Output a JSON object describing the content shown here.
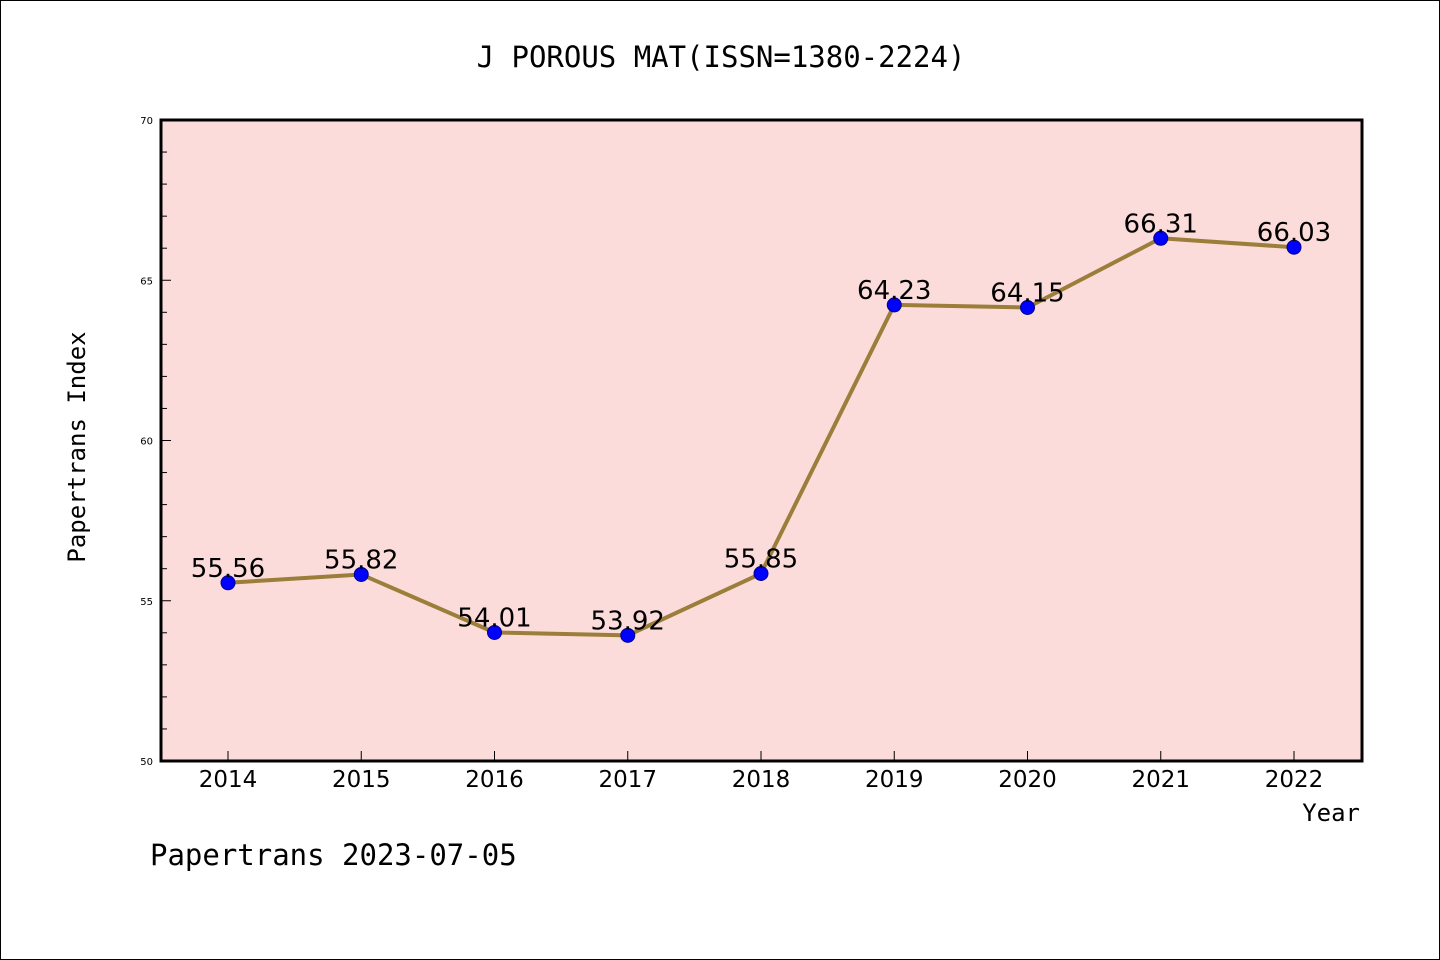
{
  "chart_data": {
    "type": "line",
    "title": "J POROUS MAT(ISSN=1380-2224)",
    "xlabel": "Year",
    "ylabel": "Papertrans Index",
    "categories": [
      "2014",
      "2015",
      "2016",
      "2017",
      "2018",
      "2019",
      "2020",
      "2021",
      "2022"
    ],
    "series": [
      {
        "values": [
          55.56,
          55.82,
          54.01,
          53.92,
          55.85,
          64.23,
          64.15,
          66.31,
          66.03
        ],
        "labels": [
          "55.56",
          "55.82",
          "54.01",
          "53.92",
          "55.85",
          "64.23",
          "64.15",
          "66.31",
          "66.03"
        ]
      }
    ],
    "ylim": [
      50,
      70
    ],
    "yticks": [
      "50",
      "55",
      "60",
      "65",
      "70"
    ],
    "grid": false,
    "legend": "none",
    "colors": {
      "plot_background": "#fcdcda",
      "line": "#9a7e3a",
      "marker": "#0000ff",
      "marker_edge": "#00008b",
      "axis": "#000000"
    }
  },
  "footer": {
    "text": "Papertrans 2023-07-05"
  }
}
